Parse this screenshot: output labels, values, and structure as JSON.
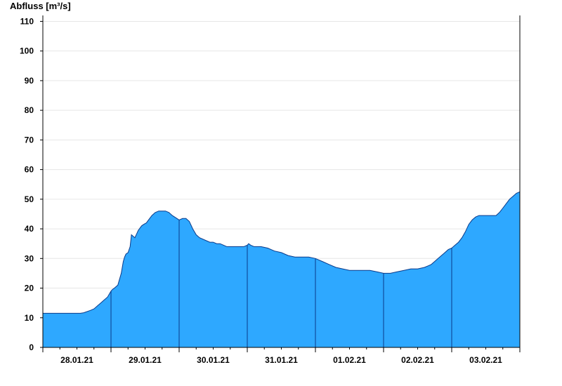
{
  "chart_data": {
    "type": "area",
    "title": "",
    "ylabel": "Abfluss [m³/s]",
    "xlabel": "",
    "ylim": [
      0,
      112
    ],
    "xlim": [
      0,
      7
    ],
    "yticks": [
      0,
      10,
      20,
      30,
      40,
      50,
      60,
      70,
      80,
      90,
      100,
      110
    ],
    "xtick_labels": [
      "28.01.21",
      "29.01.21",
      "30.01.21",
      "31.01.21",
      "01.02.21",
      "02.02.21",
      "03.02.21"
    ],
    "grid": true,
    "fill_color": "#2ea8ff",
    "line_color": "#0a3a8a",
    "x_unit": "days since 28.01.21 00:00",
    "series": [
      {
        "x": [
          0,
          0.2,
          0.4,
          0.55,
          0.6,
          0.7,
          0.75,
          0.8,
          0.85,
          0.9,
          0.95,
          1.0,
          1.02,
          1.05,
          1.1,
          1.15,
          1.18,
          1.2,
          1.22,
          1.25,
          1.28,
          1.3,
          1.35,
          1.38,
          1.4,
          1.45,
          1.48,
          1.52,
          1.55,
          1.6,
          1.65,
          1.7,
          1.75,
          1.8,
          1.85,
          1.9,
          2.0,
          2.05,
          2.1,
          2.15,
          2.2,
          2.25,
          2.3,
          2.4,
          2.45,
          2.5,
          2.55,
          2.6,
          2.65,
          2.7,
          2.8,
          2.9,
          2.95,
          3.0,
          3.02,
          3.05,
          3.1,
          3.2,
          3.3,
          3.35,
          3.4,
          3.5,
          3.55,
          3.6,
          3.7,
          3.8,
          3.9,
          4.0,
          4.1,
          4.2,
          4.3,
          4.4,
          4.5,
          4.6,
          4.7,
          4.8,
          4.9,
          5.0,
          5.1,
          5.2,
          5.3,
          5.4,
          5.5,
          5.6,
          5.65,
          5.7,
          5.75,
          5.8,
          5.85,
          5.9,
          5.95,
          6.0,
          6.05,
          6.1,
          6.15,
          6.2,
          6.25,
          6.3,
          6.35,
          6.4,
          6.45,
          6.5,
          6.55,
          6.6,
          6.65,
          6.7,
          6.75,
          6.8,
          6.85,
          6.9,
          6.95,
          7.0
        ],
        "values": [
          11.5,
          11.5,
          11.5,
          11.5,
          11.7,
          12.5,
          13.0,
          14.0,
          15.0,
          16.0,
          17.0,
          19.0,
          19.5,
          20.0,
          21.0,
          25.0,
          29.0,
          30.5,
          31.5,
          32.0,
          34.0,
          38.0,
          37.0,
          38.5,
          39.5,
          41.0,
          41.5,
          42.0,
          43.0,
          44.5,
          45.5,
          46.0,
          46.0,
          46.0,
          45.5,
          44.5,
          43.0,
          43.5,
          43.5,
          42.5,
          40.0,
          38.0,
          37.0,
          36.0,
          35.5,
          35.5,
          35.0,
          35.0,
          34.5,
          34.0,
          34.0,
          34.0,
          34.0,
          34.5,
          35.0,
          34.5,
          34.0,
          34.0,
          33.5,
          33.0,
          32.5,
          32.0,
          31.5,
          31.0,
          30.5,
          30.5,
          30.5,
          30.0,
          29.0,
          28.0,
          27.0,
          26.5,
          26.0,
          26.0,
          26.0,
          26.0,
          25.5,
          25.0,
          25.0,
          25.5,
          26.0,
          26.5,
          26.5,
          27.0,
          27.5,
          28.0,
          29.0,
          30.0,
          31.0,
          32.0,
          33.0,
          33.5,
          34.5,
          35.5,
          37.0,
          39.0,
          41.5,
          43.0,
          44.0,
          44.5,
          44.5,
          44.5,
          44.5,
          44.5,
          44.5,
          45.5,
          47.0,
          48.5,
          50.0,
          51.0,
          52.0,
          52.5
        ]
      }
    ]
  }
}
